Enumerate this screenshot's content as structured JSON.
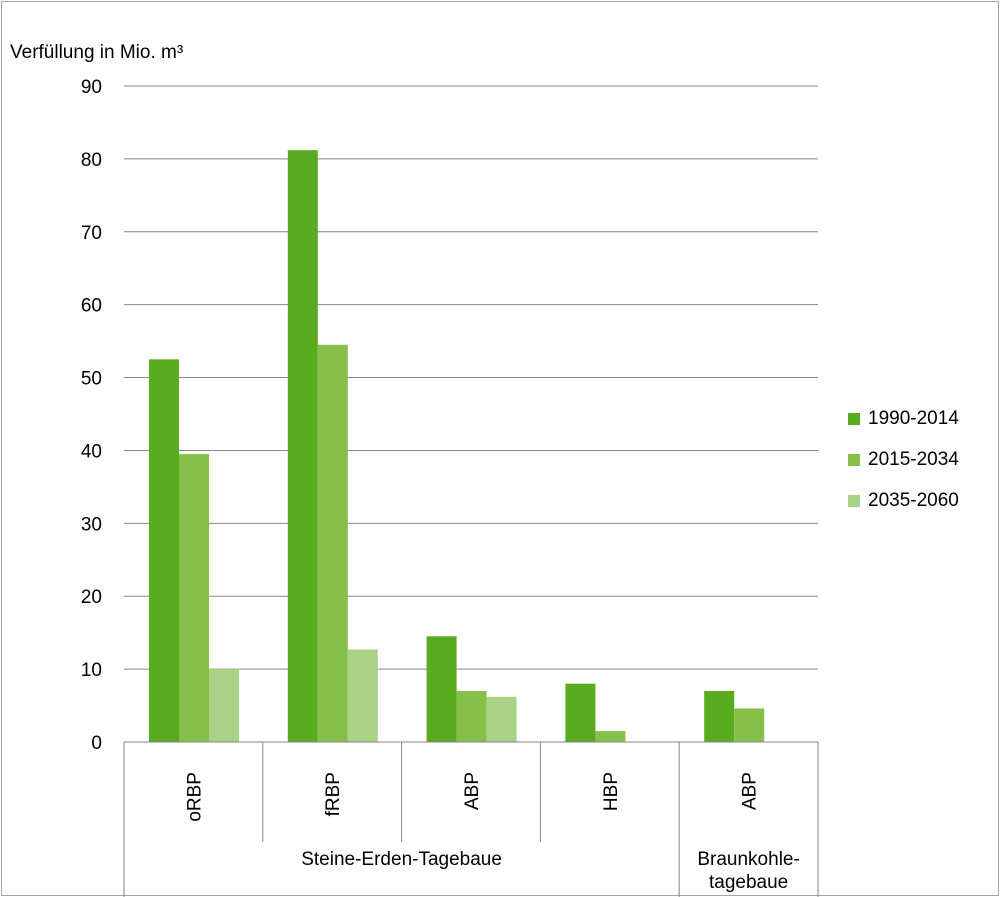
{
  "chart_data": {
    "type": "bar",
    "ylabel": "Verfüllung  in Mio. m³",
    "ylim": [
      0,
      90
    ],
    "yticks": [
      "0",
      "10",
      "20",
      "30",
      "40",
      "50",
      "60",
      "70",
      "80",
      "90"
    ],
    "grid": true,
    "legend_position": "right",
    "categories": [
      "oRBP",
      "fRBP",
      "ABP",
      "HBP",
      "ABP"
    ],
    "groups": [
      {
        "label": "Steine-Erden-Tagebaue",
        "span": 4
      },
      {
        "label": "Braunkohle-tagebaue",
        "lines": [
          "Braunkohle-",
          "tagebaue"
        ],
        "span": 1
      }
    ],
    "series": [
      {
        "name": "1990-2014",
        "color": "#5aab1f",
        "values": [
          52.5,
          81.2,
          14.5,
          8.0,
          7.0
        ]
      },
      {
        "name": "2015-2034",
        "color": "#86c04a",
        "values": [
          39.5,
          54.5,
          7.0,
          1.5,
          4.6
        ]
      },
      {
        "name": "2035-2060",
        "color": "#a9d286",
        "values": [
          10.0,
          12.7,
          6.2,
          0,
          0
        ]
      }
    ]
  }
}
